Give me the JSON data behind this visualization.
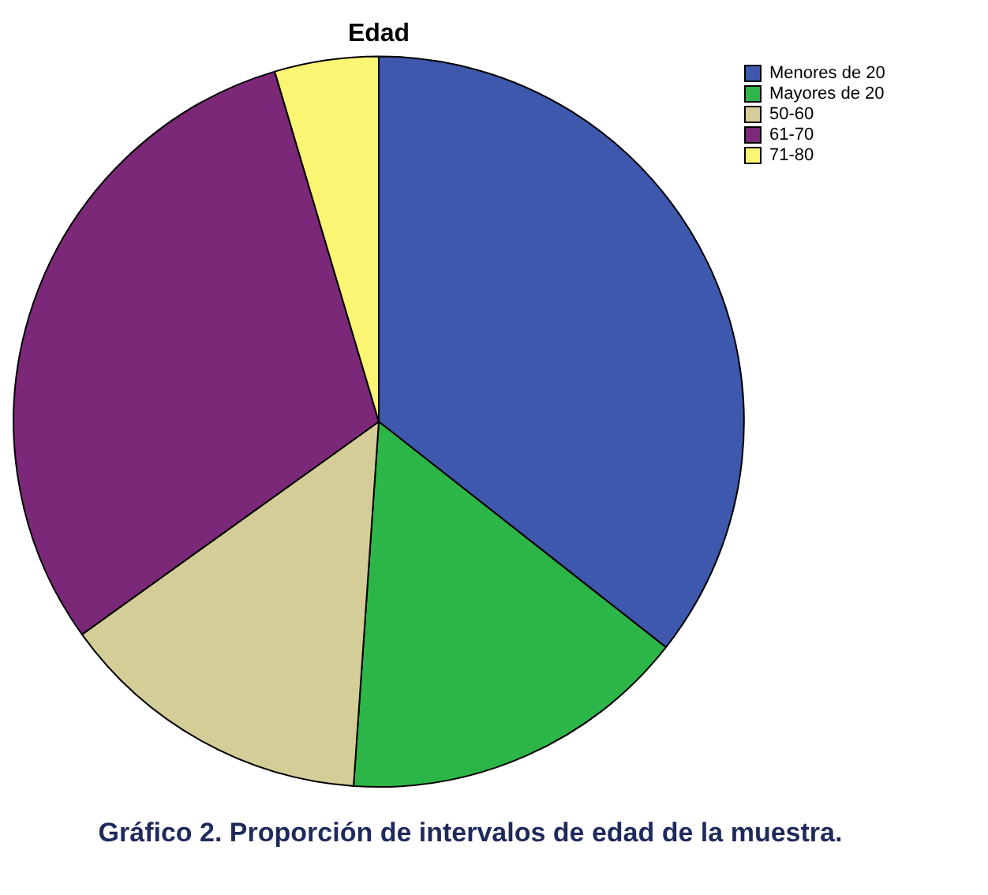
{
  "chart_data": {
    "type": "pie",
    "title": "Edad",
    "categories": [
      "Menores de 20",
      "Mayores de 20",
      "50-60",
      "61-70",
      "71-80"
    ],
    "values": [
      35.6,
      15.5,
      14,
      30.3,
      4.6
    ],
    "colors": [
      "#3d58ad",
      "#2db648",
      "#d4cd98",
      "#7b2878",
      "#fbf574"
    ],
    "legend": "top right",
    "annotations": [
      "Gráfico 2. Proporción de intervalos de edad de la muestra."
    ]
  }
}
